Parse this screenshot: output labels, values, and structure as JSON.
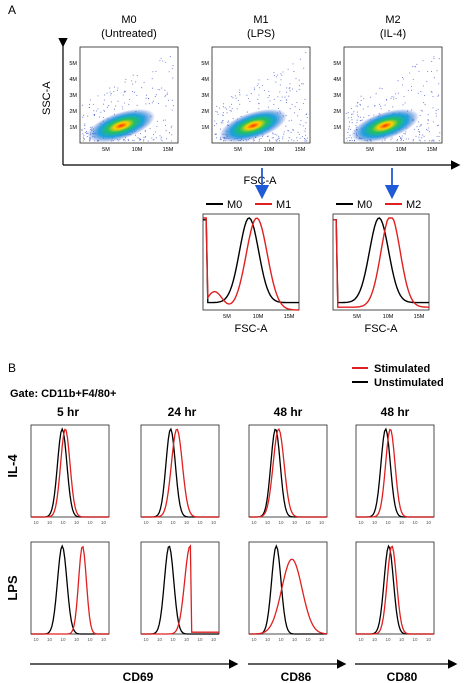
{
  "panel_a": {
    "letter": "A",
    "y_axis_label": "SSC-A",
    "x_axis_label": "FSC-A",
    "scatter_plots": [
      {
        "title_line1": "M0",
        "title_line2": "(Untreated)"
      },
      {
        "title_line1": "M1",
        "title_line2": "(LPS)"
      },
      {
        "title_line1": "M2",
        "title_line2": "(IL-4)"
      }
    ],
    "y_ticks": [
      "5M",
      "4M",
      "3M",
      "2M",
      "1M"
    ],
    "x_ticks": [
      "5M",
      "10M",
      "15M"
    ],
    "overlays": [
      {
        "legend_black": "M0",
        "legend_red": "M1",
        "xlabel": "FSC-A",
        "ticks": [
          "5M",
          "10M",
          "15M"
        ]
      },
      {
        "legend_black": "M0",
        "legend_red": "M2",
        "xlabel": "FSC-A",
        "ticks": [
          "5M",
          "10M",
          "15M"
        ]
      }
    ]
  },
  "panel_b": {
    "letter": "B",
    "gate": "Gate: CD11b+F4/80+",
    "legend": [
      {
        "label": "Stimulated",
        "color": "#e02020"
      },
      {
        "label": "Unstimulated",
        "color": "#000000"
      }
    ],
    "columns": [
      "5 hr",
      "24 hr",
      "48 hr",
      "48 hr"
    ],
    "rows": [
      "IL-4",
      "LPS"
    ],
    "markers": [
      "CD69",
      "CD86",
      "CD80"
    ],
    "tick_label": "10"
  },
  "colors": {
    "stimulated": "#e02020",
    "unstimulated": "#000000",
    "arrow": "#1f5bd6"
  }
}
